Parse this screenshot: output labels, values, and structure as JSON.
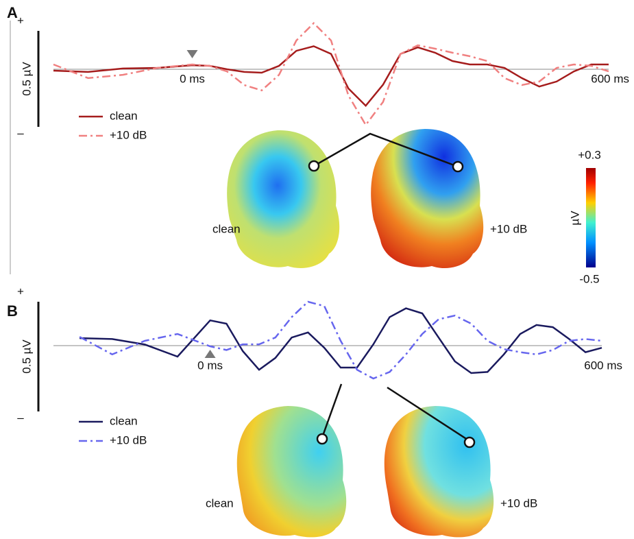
{
  "chart_data": [
    {
      "type": "line",
      "panel": "A",
      "x": [
        -200,
        -150,
        -100,
        -50,
        0,
        25,
        50,
        75,
        100,
        125,
        150,
        175,
        200,
        225,
        250,
        275,
        300,
        325,
        350,
        375,
        400,
        425,
        450,
        475,
        500,
        525,
        550,
        575,
        600
      ],
      "series": [
        {
          "name": "clean",
          "color": "#a51c1c",
          "dash": "solid",
          "values": [
            -0.007,
            -0.014,
            0.004,
            0.007,
            0.021,
            0.018,
            0,
            -0.014,
            -0.018,
            0.018,
            0.096,
            0.12,
            0.08,
            -0.1,
            -0.19,
            -0.08,
            0.08,
            0.114,
            0.086,
            0.043,
            0.025,
            0.025,
            0.007,
            -0.046,
            -0.09,
            -0.064,
            -0.011,
            0.025,
            0.025
          ]
        },
        {
          "name": "+10 dB",
          "color": "#f08080",
          "dash": "dash-dot",
          "values": [
            0.025,
            -0.046,
            -0.029,
            0.007,
            0.025,
            0.018,
            -0.011,
            -0.082,
            -0.11,
            -0.029,
            0.15,
            0.24,
            0.15,
            -0.136,
            -0.29,
            -0.17,
            0.08,
            0.125,
            0.107,
            0.086,
            0.068,
            0.043,
            -0.046,
            -0.082,
            -0.064,
            0.007,
            0.025,
            0.018,
            -0.011
          ]
        }
      ],
      "xlim": [
        -200,
        600
      ],
      "xticks": [
        {
          "value": 0,
          "label": "0 ms"
        },
        {
          "value": 600,
          "label": "600 ms"
        }
      ],
      "ylim": [
        -0.3,
        0.2
      ],
      "scale_bar": {
        "value": 0.5,
        "label": "0.5 µV",
        "top": "+",
        "bottom": "–"
      },
      "topomap_labels": [
        "clean",
        "+10 dB"
      ],
      "colorbar": {
        "label": "µV",
        "ticks": [
          {
            "value": 0.3,
            "label": "+0.3"
          },
          -0.5
        ]
      }
    },
    {
      "type": "line",
      "panel": "B",
      "x": [
        -200,
        -150,
        -100,
        -50,
        0,
        25,
        50,
        75,
        100,
        125,
        150,
        175,
        200,
        225,
        250,
        275,
        300,
        325,
        350,
        375,
        400,
        425,
        450,
        475,
        500,
        525,
        550,
        575,
        600
      ],
      "series": [
        {
          "name": "clean",
          "color": "#1a1a5e",
          "dash": "solid",
          "values": [
            0.034,
            0.03,
            0.005,
            -0.05,
            0.115,
            0.1,
            -0.025,
            -0.11,
            -0.056,
            0.037,
            0.06,
            -0.01,
            -0.1,
            -0.1,
            0.006,
            0.13,
            0.17,
            0.147,
            0.037,
            -0.072,
            -0.125,
            -0.12,
            -0.04,
            0.053,
            0.094,
            0.084,
            0.03,
            -0.03,
            -0.01
          ]
        },
        {
          "name": "+10 dB",
          "color": "#6666ee",
          "dash": "dash-dot",
          "values": [
            0.04,
            -0.04,
            0.022,
            0.053,
            -0.003,
            -0.02,
            0.006,
            0.006,
            0.037,
            0.13,
            0.2,
            0.18,
            0.022,
            -0.11,
            -0.15,
            -0.12,
            -0.04,
            0.053,
            0.12,
            0.137,
            0.1,
            0.022,
            -0.016,
            -0.03,
            -0.04,
            -0.02,
            0.022,
            0.03,
            0.022
          ]
        }
      ],
      "xlim": [
        -240,
        600
      ],
      "xticks": [
        {
          "value": 0,
          "label": "0 ms"
        },
        {
          "value": 600,
          "label": "600 ms"
        }
      ],
      "ylim": [
        -0.3,
        0.2
      ],
      "scale_bar": {
        "value": 0.5,
        "label": "0.5 µV",
        "top": "+",
        "bottom": "–"
      },
      "topomap_labels": [
        "clean",
        "+10 dB"
      ]
    }
  ]
}
